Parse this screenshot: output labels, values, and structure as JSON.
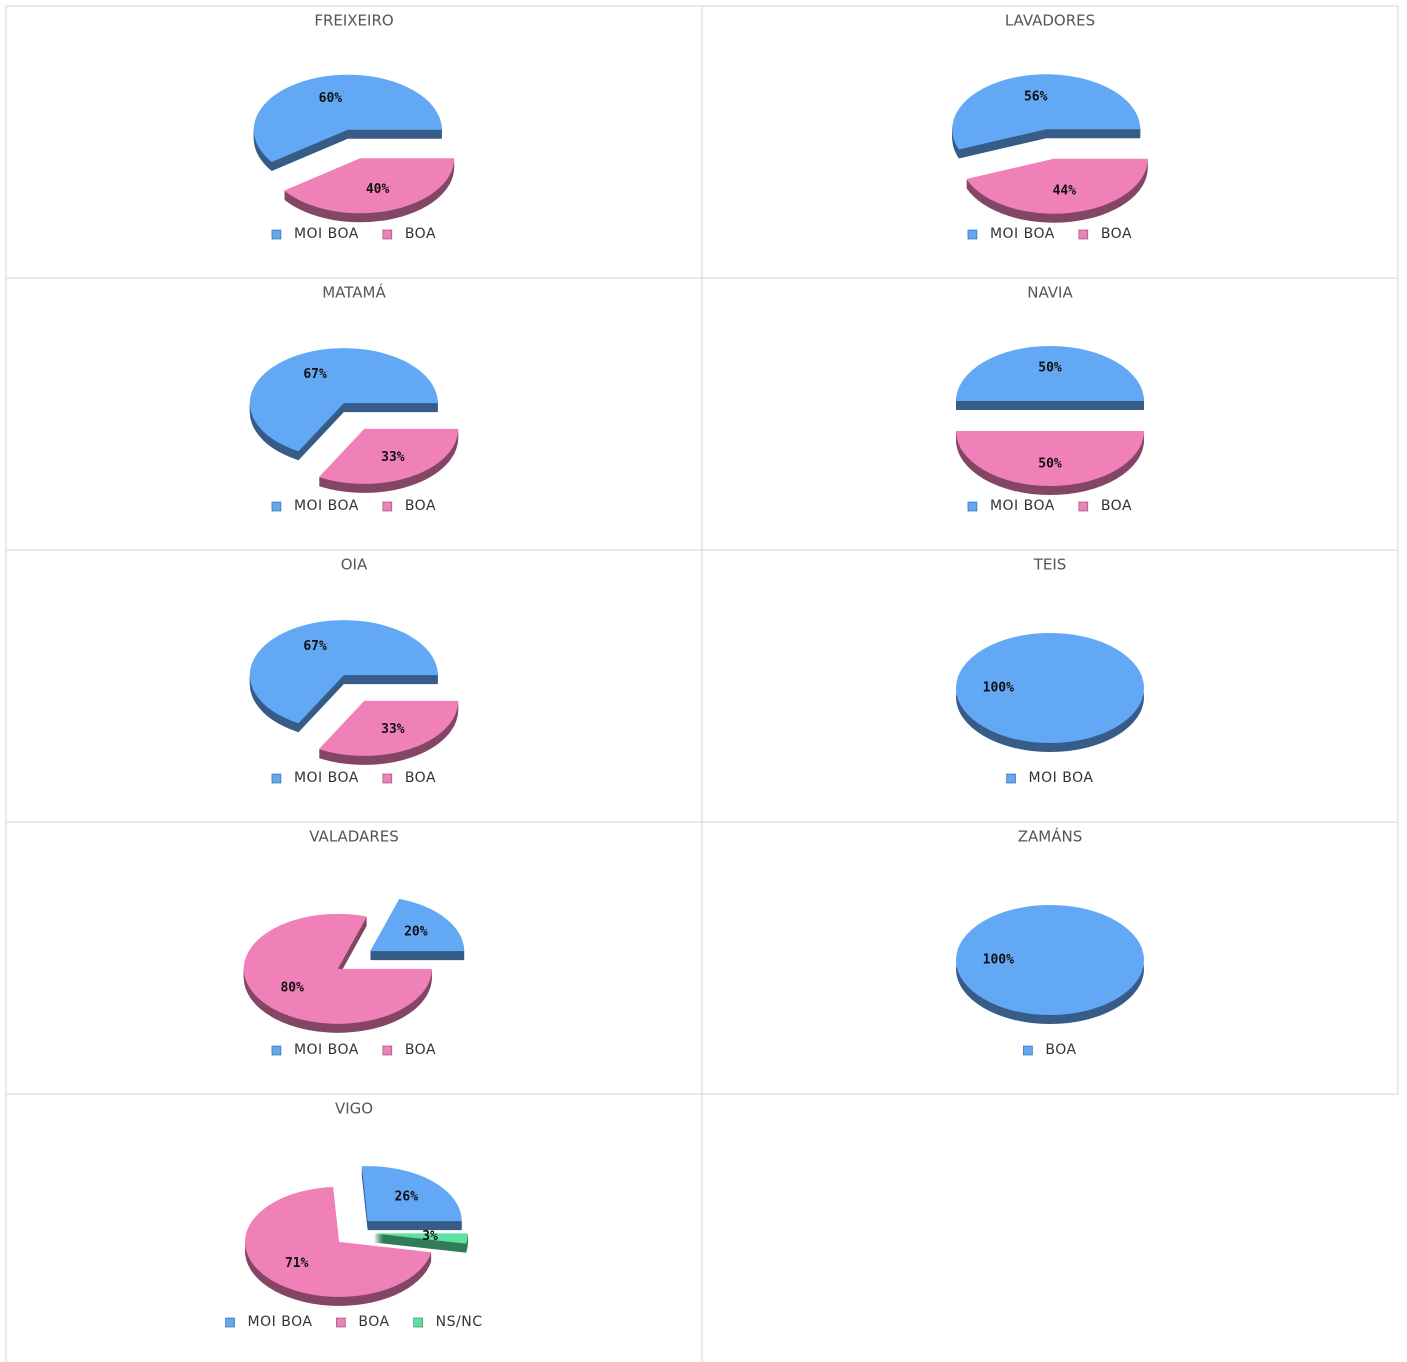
{
  "chart_data": [
    {
      "type": "pie",
      "title": "FREIXEIRO",
      "categories": [
        "MOI BOA",
        "BOA"
      ],
      "values": [
        60,
        40
      ],
      "value_labels": [
        "60%",
        "40%"
      ],
      "colors": [
        "#62a8f5",
        "#f080b8"
      ]
    },
    {
      "type": "pie",
      "title": "LAVADORES",
      "categories": [
        "MOI BOA",
        "BOA"
      ],
      "values": [
        56,
        44
      ],
      "value_labels": [
        "56%",
        "44%"
      ],
      "colors": [
        "#62a8f5",
        "#f080b8"
      ]
    },
    {
      "type": "pie",
      "title": "MATAMÁ",
      "categories": [
        "MOI BOA",
        "BOA"
      ],
      "values": [
        67,
        33
      ],
      "value_labels": [
        "67%",
        "33%"
      ],
      "colors": [
        "#62a8f5",
        "#f080b8"
      ]
    },
    {
      "type": "pie",
      "title": "NAVIA",
      "categories": [
        "MOI BOA",
        "BOA"
      ],
      "values": [
        50,
        50
      ],
      "value_labels": [
        "50%",
        "50%"
      ],
      "colors": [
        "#62a8f5",
        "#f080b8"
      ]
    },
    {
      "type": "pie",
      "title": "OIA",
      "categories": [
        "MOI BOA",
        "BOA"
      ],
      "values": [
        67,
        33
      ],
      "value_labels": [
        "67%",
        "33%"
      ],
      "colors": [
        "#62a8f5",
        "#f080b8"
      ]
    },
    {
      "type": "pie",
      "title": "TEIS",
      "categories": [
        "MOI BOA"
      ],
      "values": [
        100
      ],
      "value_labels": [
        "100%"
      ],
      "colors": [
        "#62a8f5"
      ]
    },
    {
      "type": "pie",
      "title": "VALADARES",
      "categories": [
        "MOI BOA",
        "BOA"
      ],
      "values": [
        20,
        80
      ],
      "value_labels": [
        "20%",
        "80%"
      ],
      "colors": [
        "#62a8f5",
        "#f080b8"
      ]
    },
    {
      "type": "pie",
      "title": "ZAMÁNS",
      "categories": [
        "BOA"
      ],
      "values": [
        100
      ],
      "value_labels": [
        "100%"
      ],
      "colors": [
        "#62a8f5"
      ]
    },
    {
      "type": "pie",
      "title": "VIGO",
      "categories": [
        "MOI BOA",
        "BOA",
        "NS/NC"
      ],
      "values": [
        26,
        71,
        3
      ],
      "value_labels": [
        "26%",
        "71%",
        "3%"
      ],
      "colors": [
        "#62a8f5",
        "#f080b8",
        "#5de0a0"
      ]
    }
  ]
}
